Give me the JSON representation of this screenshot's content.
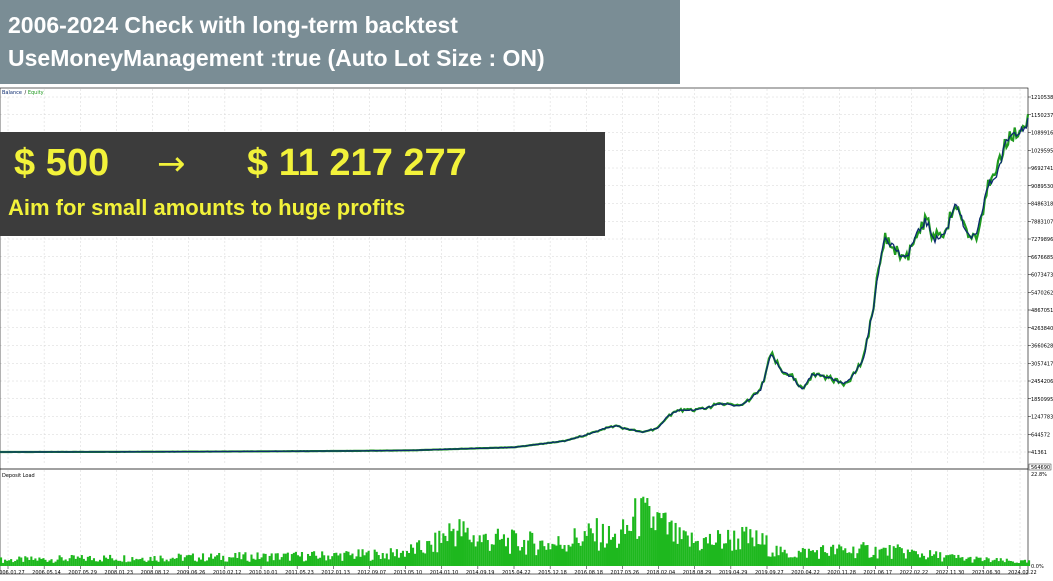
{
  "header": {
    "line1": "2006-2024 Check with long-term backtest",
    "line2": "UseMoneyManagement :true (Auto Lot Size : ON)"
  },
  "promo": {
    "from_amount": "$ 500",
    "arrow": "→",
    "to_amount": "$ 11 217 277",
    "subtitle": "Aim for small amounts to huge profits"
  },
  "colors": {
    "header_bg": "#7a8d95",
    "promo_bg": "#3c3c3c",
    "promo_text": "#f2f23a",
    "balance_line": "#0b2a6e",
    "equity_line": "#1f9a1f",
    "deposit_load": "#1eb81e"
  },
  "chart_data": [
    {
      "type": "line",
      "legend": [
        "Balance",
        "Equity"
      ],
      "x_tick_labels": [
        "2006.01.27",
        "2006.05.14",
        "2007.05.29",
        "2008.01.23",
        "2008.08.12",
        "2009.06.26",
        "2010.02.12",
        "2010.10.01",
        "2011.05.23",
        "2012.01.13",
        "2012.09.07",
        "2013.05.10",
        "2014.01.10",
        "2014.09.19",
        "2015.04.22",
        "2015.12.18",
        "2016.08.18",
        "2017.03.26",
        "2018.02.04",
        "2018.08.29",
        "2019.04.29",
        "2019.09.27",
        "2020.04.22",
        "2020.11.28",
        "2021.06.17",
        "2022.02.22",
        "2022.11.30",
        "2023.06.30",
        "2024.02.22"
      ],
      "y_tick_labels": [
        "12105386",
        "11502375",
        "10899163",
        "10295952",
        "9692741",
        "9089530",
        "8486318",
        "7883107",
        "7279896",
        "6676685",
        "6073473",
        "5470262",
        "4867051",
        "4263840",
        "3660628",
        "3057417",
        "2454206",
        "1850995",
        "1247783",
        "644572",
        "41361"
      ],
      "ylim": [
        41361,
        12105386
      ],
      "last_value_label": "564690",
      "x": [
        0,
        0.05,
        0.1,
        0.15,
        0.2,
        0.25,
        0.3,
        0.35,
        0.4,
        0.45,
        0.5,
        0.53,
        0.55,
        0.57,
        0.59,
        0.6,
        0.61,
        0.625,
        0.64,
        0.65,
        0.66,
        0.68,
        0.7,
        0.72,
        0.73,
        0.74,
        0.75,
        0.76,
        0.77,
        0.78,
        0.79,
        0.8,
        0.81,
        0.82,
        0.83,
        0.84,
        0.85,
        0.86,
        0.87,
        0.88,
        0.89,
        0.9,
        0.91,
        0.92,
        0.93,
        0.94,
        0.95,
        0.96,
        0.97,
        0.98,
        0.99,
        1.0
      ],
      "series": [
        {
          "name": "Balance",
          "values": [
            41361,
            44000,
            46000,
            50000,
            55000,
            62000,
            70000,
            80000,
            98000,
            150000,
            200000,
            330000,
            420000,
            620000,
            860000,
            930000,
            820000,
            720000,
            850000,
            1280000,
            1450000,
            1480000,
            1680000,
            1600000,
            1860000,
            2150000,
            3350000,
            2800000,
            2600000,
            2150000,
            2650000,
            2650000,
            2500000,
            2350000,
            2650000,
            3200000,
            5050000,
            7400000,
            7000000,
            6550000,
            7300000,
            7900000,
            7250000,
            7500000,
            8600000,
            7400000,
            7350000,
            9000000,
            9500000,
            10700000,
            11000000,
            11217277
          ]
        }
      ]
    },
    {
      "type": "area",
      "legend": [
        "Deposit Load"
      ],
      "y_tick_labels": [
        "22.8%",
        "0.0%"
      ],
      "ylim": [
        0,
        22.8
      ],
      "x": [
        0,
        0.1,
        0.2,
        0.3,
        0.38,
        0.42,
        0.44,
        0.46,
        0.5,
        0.54,
        0.56,
        0.58,
        0.6,
        0.62,
        0.64,
        0.66,
        0.68,
        0.7,
        0.72,
        0.74,
        0.76,
        0.8,
        0.84,
        0.88,
        0.9,
        0.94,
        0.98,
        1.0
      ],
      "values": [
        1.5,
        2.0,
        2.2,
        2.5,
        3.0,
        5.0,
        9.5,
        7.0,
        6.0,
        5.5,
        7.0,
        8.0,
        6.5,
        12.5,
        11.0,
        6.5,
        6.0,
        6.5,
        7.0,
        6.0,
        3.0,
        3.8,
        4.0,
        3.5,
        2.8,
        1.8,
        1.2,
        1.0
      ]
    }
  ]
}
